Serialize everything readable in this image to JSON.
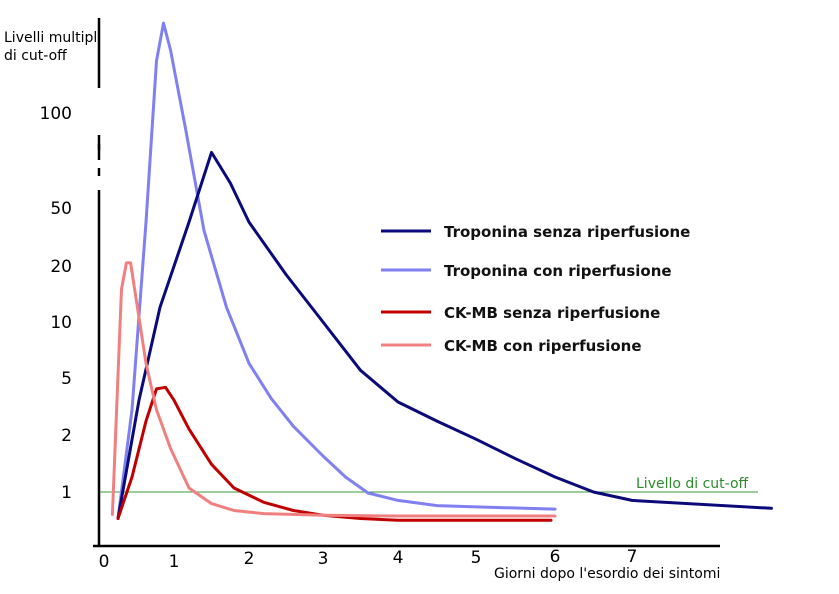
{
  "chart_data": {
    "type": "line",
    "title": "",
    "ylabel_lines": [
      "Livelli multipli",
      "di cut-off"
    ],
    "xlabel": "Giorni dopo l'esordio dei sintomi",
    "x_ticks": [
      "0",
      "1",
      "2",
      "3",
      "4",
      "5",
      "6",
      "7"
    ],
    "y_ticks": [
      "1",
      "2",
      "5",
      "10",
      "20",
      "50",
      "100"
    ],
    "y_scale": "broken-log",
    "xlim": [
      0,
      8.1
    ],
    "cutoff": {
      "label": "Livello di cut-off",
      "value": 1,
      "color": "#3a9a3a"
    },
    "series": [
      {
        "name": "Troponina senza riperfusione",
        "color": "#0a0a7a",
        "points": [
          [
            0.2,
            0.6
          ],
          [
            0.5,
            3.5
          ],
          [
            0.8,
            12
          ],
          [
            1.2,
            40
          ],
          [
            1.5,
            75
          ],
          [
            1.75,
            60
          ],
          [
            2.0,
            40
          ],
          [
            2.5,
            18
          ],
          [
            3.0,
            10
          ],
          [
            3.5,
            5.5
          ],
          [
            4.0,
            3.4
          ],
          [
            4.5,
            2.5
          ],
          [
            5.0,
            1.9
          ],
          [
            5.5,
            1.5
          ],
          [
            6.0,
            1.2
          ],
          [
            6.5,
            1.0
          ],
          [
            7.0,
            0.85
          ],
          [
            8.05,
            0.73
          ]
        ]
      },
      {
        "name": "Troponina con riperfusione",
        "color": "#8080f0",
        "points": [
          [
            0.2,
            0.6
          ],
          [
            0.4,
            3
          ],
          [
            0.6,
            40
          ],
          [
            0.75,
            170
          ],
          [
            0.85,
            250
          ],
          [
            0.95,
            190
          ],
          [
            1.15,
            90
          ],
          [
            1.4,
            35
          ],
          [
            1.7,
            12
          ],
          [
            2.0,
            6
          ],
          [
            2.3,
            3.6
          ],
          [
            2.6,
            2.3
          ],
          [
            3.0,
            1.55
          ],
          [
            3.3,
            1.2
          ],
          [
            3.6,
            0.98
          ],
          [
            4.0,
            0.85
          ],
          [
            4.5,
            0.77
          ],
          [
            5.0,
            0.75
          ],
          [
            6.0,
            0.72
          ]
        ]
      },
      {
        "name": "CK-MB senza riperfusione",
        "color": "#c00000",
        "points": [
          [
            0.2,
            0.6
          ],
          [
            0.4,
            1.2
          ],
          [
            0.6,
            2.5
          ],
          [
            0.75,
            4.2
          ],
          [
            0.88,
            4.3
          ],
          [
            1.0,
            3.5
          ],
          [
            1.2,
            2.2
          ],
          [
            1.5,
            1.4
          ],
          [
            1.8,
            1.05
          ],
          [
            2.2,
            0.82
          ],
          [
            2.6,
            0.7
          ],
          [
            3.0,
            0.64
          ],
          [
            3.5,
            0.6
          ],
          [
            4.0,
            0.58
          ],
          [
            5.0,
            0.58
          ],
          [
            5.95,
            0.58
          ]
        ]
      },
      {
        "name": "CK-MB con riperfusione",
        "color": "#f08080",
        "points": [
          [
            0.12,
            0.65
          ],
          [
            0.18,
            3
          ],
          [
            0.25,
            15
          ],
          [
            0.32,
            21
          ],
          [
            0.38,
            21
          ],
          [
            0.45,
            14
          ],
          [
            0.6,
            6
          ],
          [
            0.75,
            3
          ],
          [
            0.95,
            1.7
          ],
          [
            1.2,
            1.05
          ],
          [
            1.5,
            0.8
          ],
          [
            1.8,
            0.7
          ],
          [
            2.2,
            0.66
          ],
          [
            3.0,
            0.64
          ],
          [
            4.0,
            0.63
          ],
          [
            5.0,
            0.63
          ],
          [
            6.0,
            0.63
          ]
        ]
      }
    ]
  }
}
